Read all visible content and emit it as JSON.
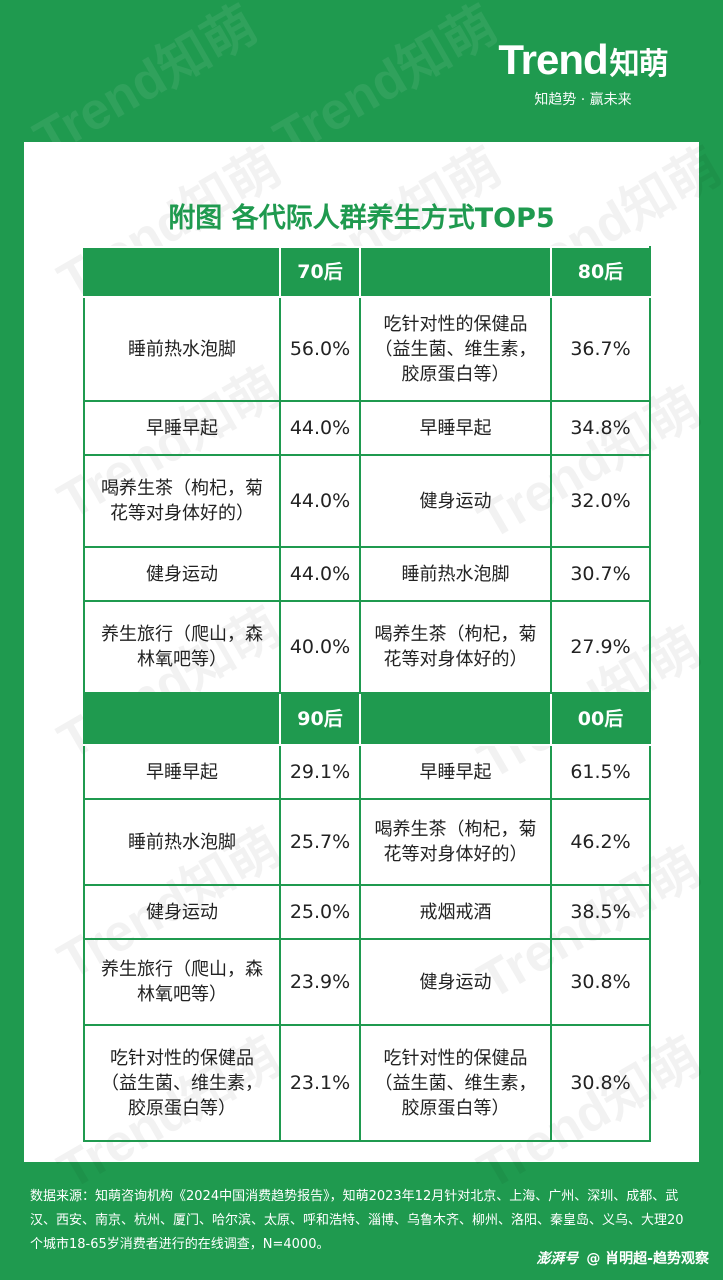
{
  "logo": {
    "brand": "Trend",
    "brand_cn": "知萌",
    "slogan": "知趋势 · 赢未来"
  },
  "title": "附图  各代际人群养生方式TOP5",
  "sections": [
    {
      "left_label": "70后",
      "right_label": "80后",
      "rows": [
        {
          "left_item": "睡前热水泡脚",
          "left_pct": "56.0%",
          "right_item": "吃针对性的保健品（益生菌、维生素，胶原蛋白等）",
          "right_pct": "36.7%"
        },
        {
          "left_item": "早睡早起",
          "left_pct": "44.0%",
          "right_item": "早睡早起",
          "right_pct": "34.8%"
        },
        {
          "left_item": "喝养生茶（枸杞，菊花等对身体好的）",
          "left_pct": "44.0%",
          "right_item": "健身运动",
          "right_pct": "32.0%"
        },
        {
          "left_item": "健身运动",
          "left_pct": "44.0%",
          "right_item": "睡前热水泡脚",
          "right_pct": "30.7%"
        },
        {
          "left_item": "养生旅行（爬山，森林氧吧等）",
          "left_pct": "40.0%",
          "right_item": "喝养生茶（枸杞，菊花等对身体好的）",
          "right_pct": "27.9%"
        }
      ]
    },
    {
      "left_label": "90后",
      "right_label": "00后",
      "rows": [
        {
          "left_item": "早睡早起",
          "left_pct": "29.1%",
          "right_item": "早睡早起",
          "right_pct": "61.5%"
        },
        {
          "left_item": "睡前热水泡脚",
          "left_pct": "25.7%",
          "right_item": "喝养生茶（枸杞，菊花等对身体好的）",
          "right_pct": "46.2%"
        },
        {
          "left_item": "健身运动",
          "left_pct": "25.0%",
          "right_item": "戒烟戒酒",
          "right_pct": "38.5%"
        },
        {
          "left_item": "养生旅行（爬山，森林氧吧等）",
          "left_pct": "23.9%",
          "right_item": "健身运动",
          "right_pct": "30.8%"
        },
        {
          "left_item": "吃针对性的保健品（益生菌、维生素，胶原蛋白等）",
          "left_pct": "23.1%",
          "right_item": "吃针对性的保健品（益生菌、维生素，胶原蛋白等）",
          "right_pct": "30.8%"
        }
      ]
    }
  ],
  "source": "数据来源：知萌咨询机构《2024中国消费趋势报告》，知萌2023年12月针对北京、上海、广州、深圳、成都、武汉、西安、南京、杭州、厦门、哈尔滨、太原、呼和浩特、淄博、乌鲁木齐、柳州、洛阳、秦皇岛、义乌、大理20个城市18-65岁消费者进行的在线调查，N=4000。",
  "credit": {
    "platform": "澎湃号",
    "author": "@ 肖明超-趋势观察"
  }
}
